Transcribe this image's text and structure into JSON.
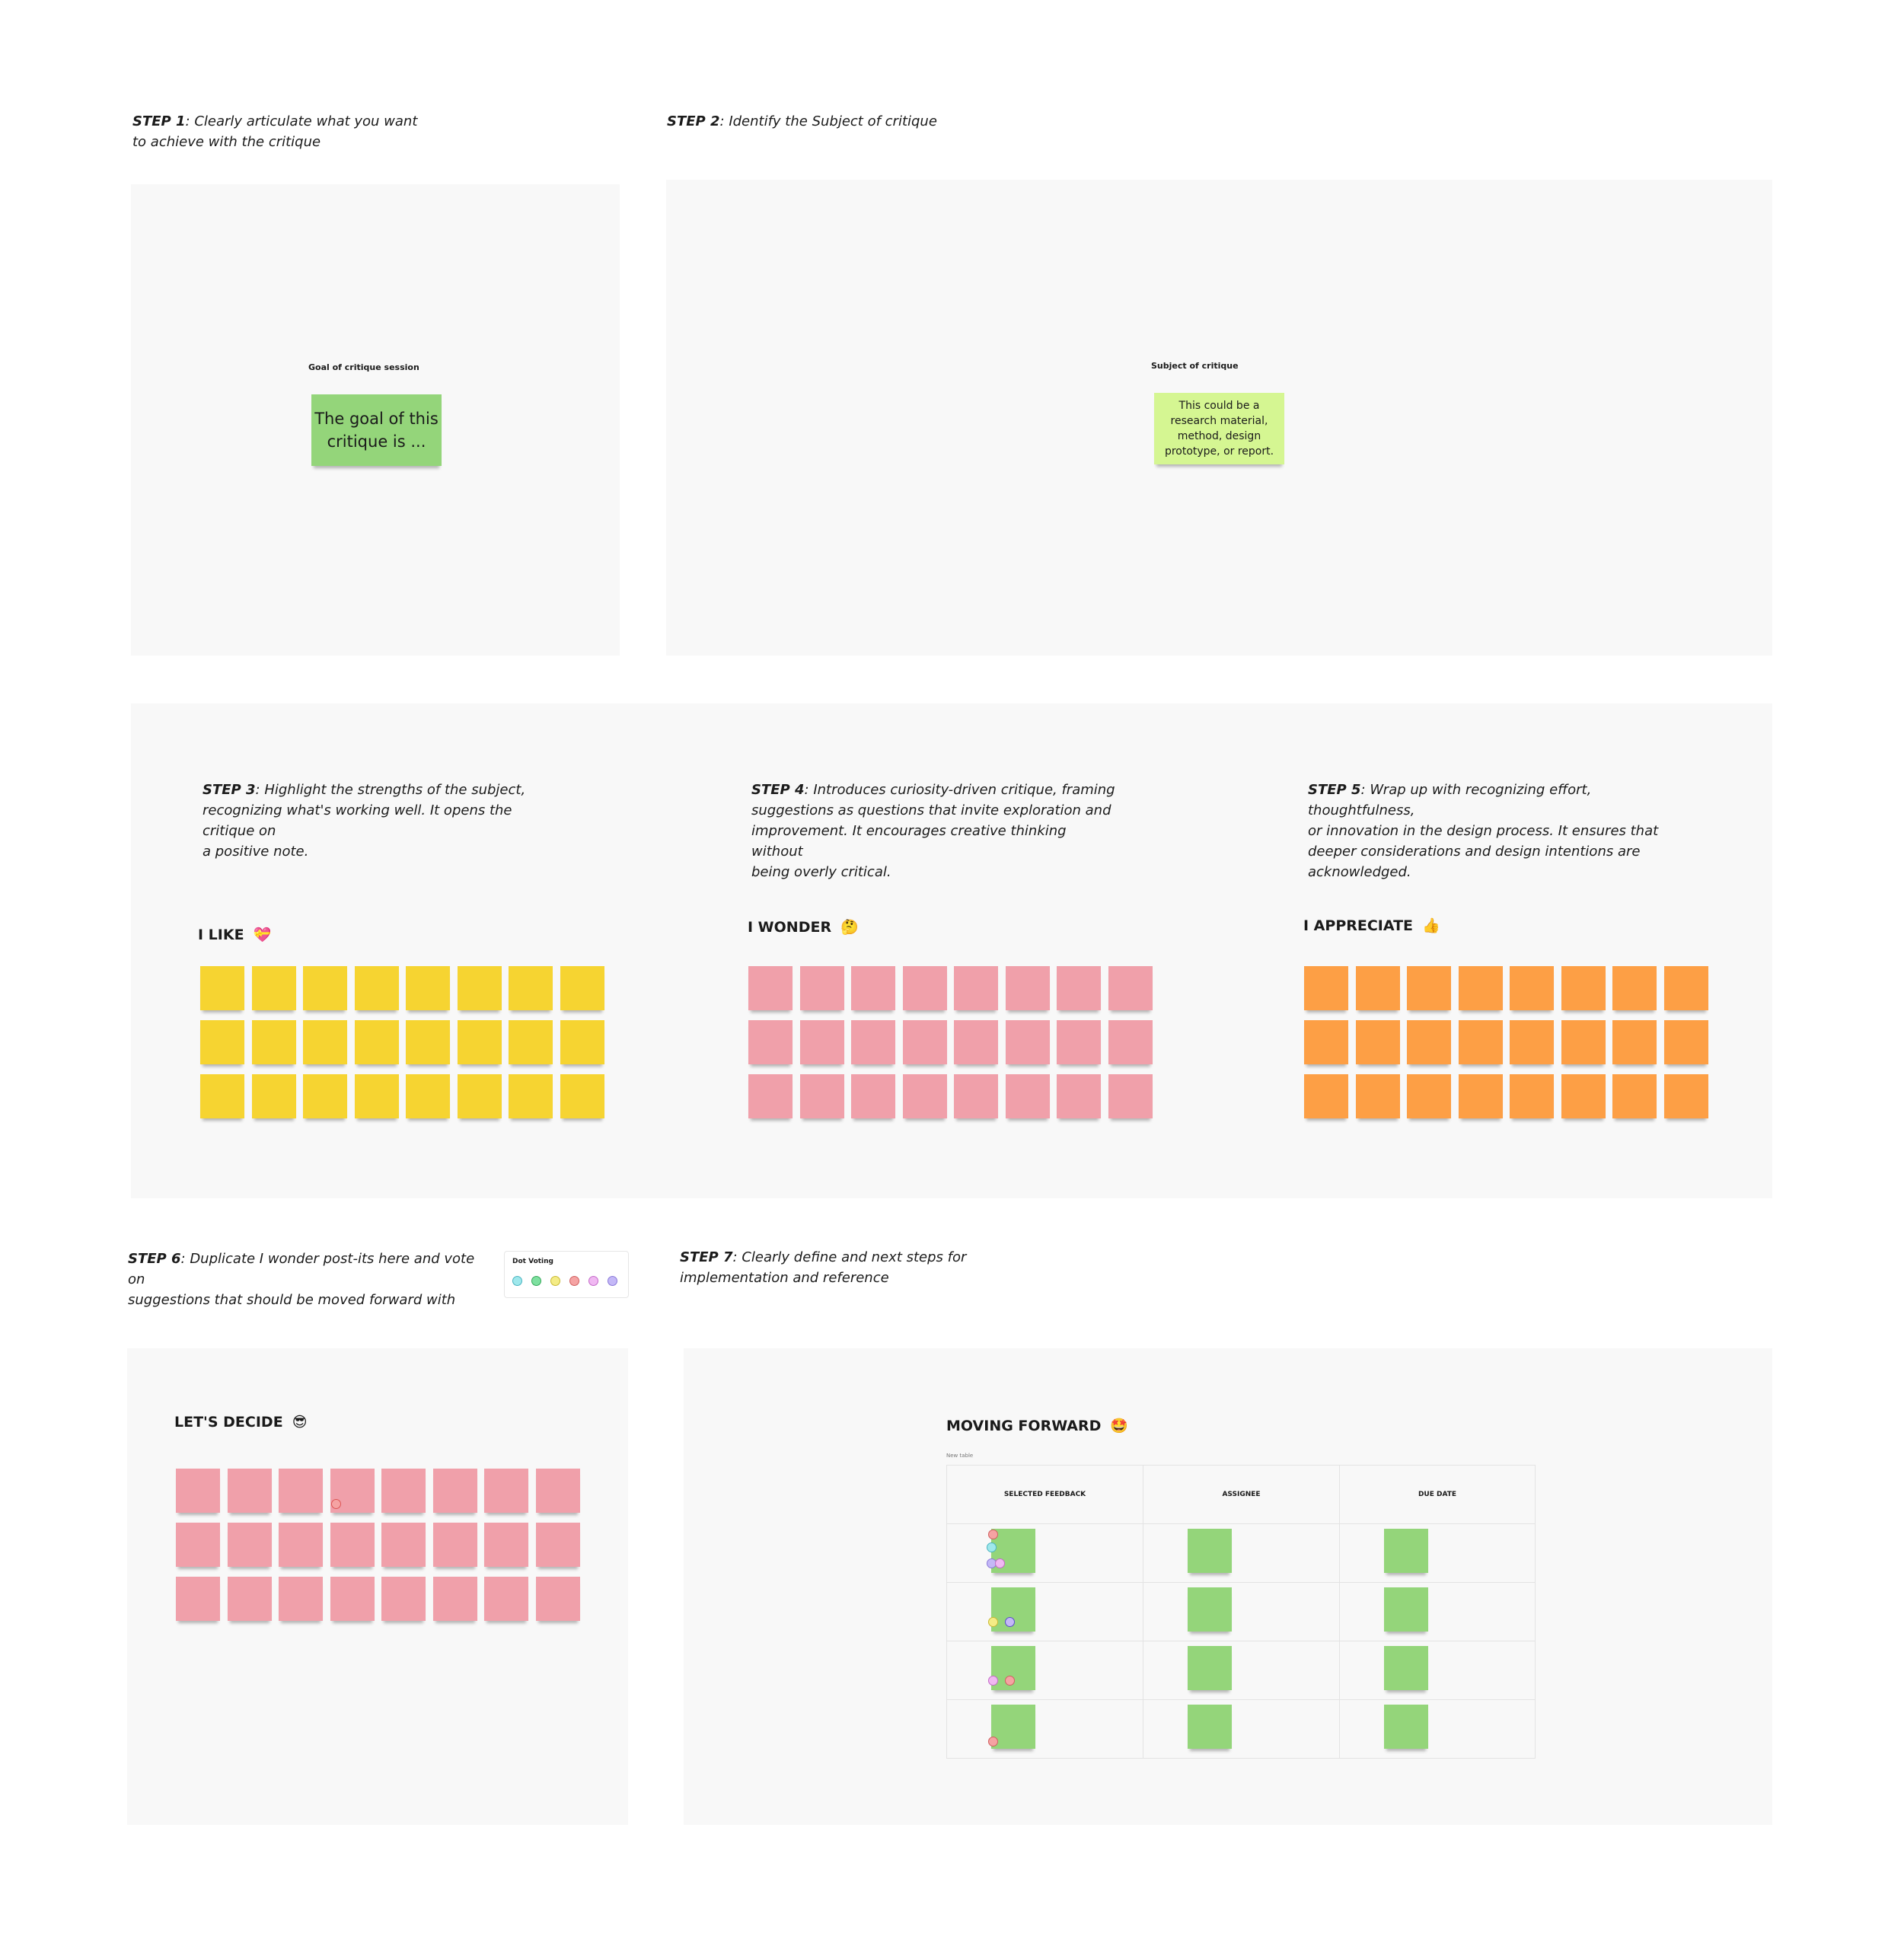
{
  "step1": {
    "label": "STEP 1",
    "text_line1": ": Clearly articulate what you want",
    "text_line2": "to achieve with the critique"
  },
  "step2": {
    "label": "STEP 2",
    "text": ": Identify the Subject of critique"
  },
  "goal": {
    "heading": "Goal of critique session",
    "note": "The goal of this critique is ..."
  },
  "subject": {
    "heading": "Subject of critique",
    "note": "This could be a research material, method, design prototype, or report."
  },
  "step3": {
    "label": "STEP 3",
    "line1": ": Highlight the strengths of the subject,",
    "line2": "recognizing what's working well. It opens the critique on",
    "line3": "a positive note."
  },
  "step4": {
    "label": "STEP 4",
    "line1": ": Introduces curiosity-driven critique, framing",
    "line2": "suggestions as questions that invite exploration and",
    "line3": "improvement. It encourages creative thinking without",
    "line4": "being overly critical."
  },
  "step5": {
    "label": "STEP 5",
    "line1": ": Wrap up with recognizing effort, thoughtfulness,",
    "line2": "or innovation in the design process. It ensures that",
    "line3": "deeper considerations and design intentions are",
    "line4": "acknowledged."
  },
  "like": {
    "title": "I LIKE",
    "emoji": "💝",
    "color": "#f6d431"
  },
  "wonder": {
    "title": "I WONDER",
    "emoji": "🤔",
    "color": "#f0a0aa"
  },
  "appreciate": {
    "title": "I APPRECIATE",
    "emoji": "👍",
    "color": "#fd9f45"
  },
  "step6": {
    "label": "STEP 6",
    "line1": ": Duplicate I wonder post-its here and vote on",
    "line2": "suggestions that should be moved forward with"
  },
  "dot_voting": {
    "title": "Dot Voting",
    "colors": [
      "#9fe8ec",
      "#7ee0a0",
      "#f4ec86",
      "#f5a3a3",
      "#f0b8f2",
      "#c4b8f7"
    ]
  },
  "step7": {
    "label": "STEP 7",
    "line1": ": Clearly define and next steps for",
    "line2": "implementation and reference"
  },
  "decide": {
    "title": "LET'S DECIDE",
    "emoji": "😎"
  },
  "forward": {
    "title": "MOVING FORWARD",
    "emoji": "🤩",
    "table_caption": "New table",
    "columns": [
      "SELECTED FEEDBACK",
      "ASSIGNEE",
      "DUE DATE"
    ]
  }
}
